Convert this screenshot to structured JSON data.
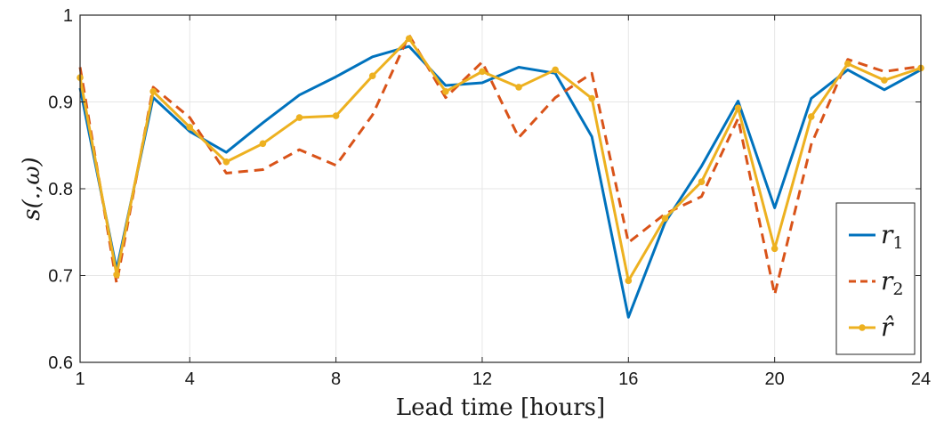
{
  "chart_data": {
    "type": "line",
    "xlabel": "Lead time [hours]",
    "ylabel": "s(.,ω)",
    "xlim": [
      1,
      24
    ],
    "ylim": [
      0.6,
      1.0
    ],
    "x_ticks": [
      "1",
      "4",
      "8",
      "12",
      "16",
      "20",
      "24"
    ],
    "y_ticks": [
      "0.6",
      "0.7",
      "0.8",
      "0.9",
      "1"
    ],
    "grid": true,
    "legend_position": "lower-right",
    "x": [
      1,
      2,
      3,
      4,
      5,
      6,
      7,
      8,
      9,
      10,
      11,
      12,
      13,
      14,
      15,
      16,
      17,
      18,
      19,
      20,
      21,
      22,
      23,
      24
    ],
    "series": [
      {
        "name": "r1",
        "color": "#0072BD",
        "style": "solid",
        "values": [
          0.916,
          0.707,
          0.905,
          0.866,
          0.842,
          0.876,
          0.908,
          0.929,
          0.952,
          0.964,
          0.919,
          0.922,
          0.94,
          0.933,
          0.86,
          0.652,
          0.761,
          0.826,
          0.901,
          0.778,
          0.904,
          0.937,
          0.914,
          0.937
        ]
      },
      {
        "name": "r2",
        "color": "#D95319",
        "style": "dashed",
        "values": [
          0.94,
          0.691,
          0.917,
          0.882,
          0.818,
          0.822,
          0.845,
          0.827,
          0.885,
          0.977,
          0.905,
          0.946,
          0.859,
          0.905,
          0.933,
          0.738,
          0.771,
          0.791,
          0.881,
          0.678,
          0.851,
          0.949,
          0.935,
          0.941
        ]
      },
      {
        "name": "r̂",
        "color": "#EDB120",
        "style": "solid-markers",
        "values": [
          0.928,
          0.701,
          0.912,
          0.871,
          0.831,
          0.852,
          0.882,
          0.884,
          0.93,
          0.973,
          0.912,
          0.935,
          0.917,
          0.937,
          0.904,
          0.694,
          0.766,
          0.808,
          0.893,
          0.731,
          0.883,
          0.944,
          0.925,
          0.939
        ]
      }
    ],
    "legend": {
      "r1": {
        "sym": "r",
        "sub": "1"
      },
      "r2": {
        "sym": "r",
        "sub": "2"
      },
      "rhat": {
        "sym": "r̂",
        "sub": ""
      }
    }
  }
}
